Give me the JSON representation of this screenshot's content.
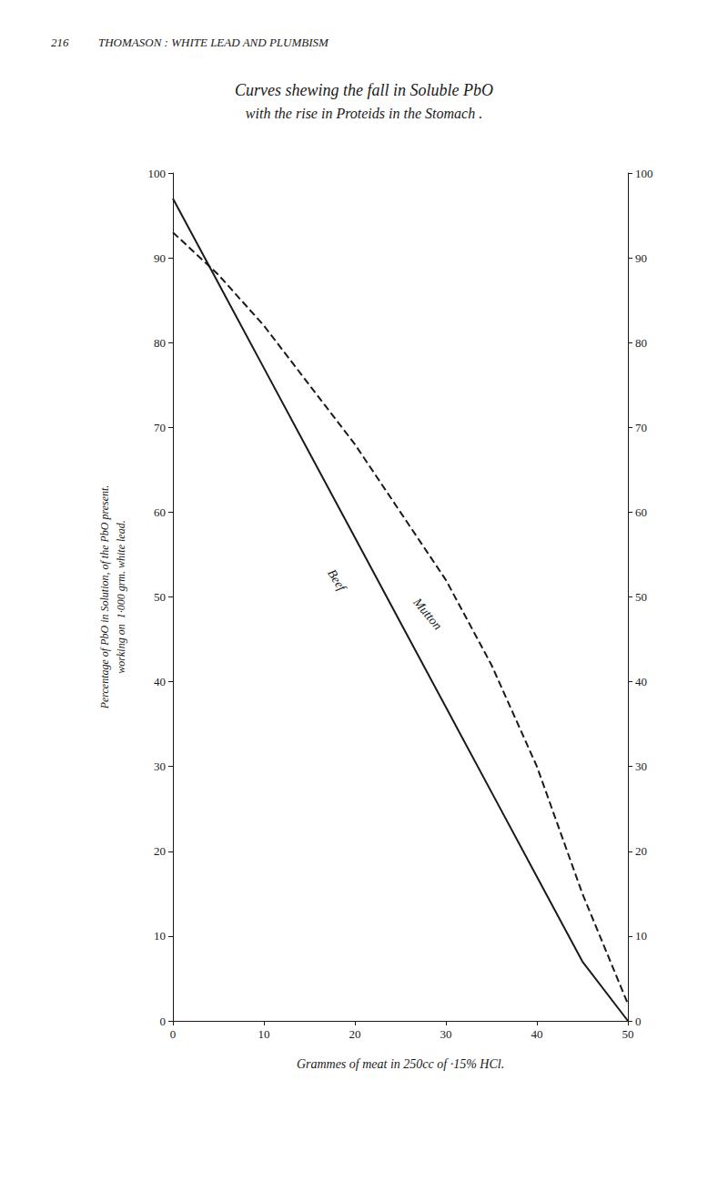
{
  "chart_data": {
    "type": "line",
    "header": "216          THOMASON : WHITE LEAD AND PLUMBISM",
    "title": "Curves shewing the fall in Soluble PbO",
    "subtitle": "with the rise in Proteids in the Stomach .",
    "xlabel": "Grammes of meat in 250cc of ·15% HCl.",
    "ylabel": "Percentage of PbO in Solution, of the PbO present.\nworking on  1·000 grm. white lead.",
    "xlim": [
      0,
      50
    ],
    "xticks": [
      0,
      10,
      20,
      30,
      40,
      50
    ],
    "ylim": [
      0,
      100
    ],
    "yticks": [
      0,
      10,
      20,
      30,
      40,
      50,
      60,
      70,
      80,
      90,
      100
    ],
    "y2lim": [
      0,
      100
    ],
    "y2ticks": [
      0,
      10,
      20,
      30,
      40,
      50,
      60,
      70,
      80,
      90,
      100
    ],
    "grid": false,
    "series": [
      {
        "name": "Beef",
        "color": "#1a1a1a",
        "line_style": "solid",
        "x": [
          0,
          5,
          10,
          15,
          20,
          25,
          30,
          35,
          40,
          45,
          50
        ],
        "values": [
          97,
          87,
          77,
          67,
          57,
          47,
          37,
          27,
          17,
          7,
          0
        ]
      },
      {
        "name": "Mutton",
        "color": "#1a1a1a",
        "line_style": "dashed",
        "x": [
          0,
          5,
          10,
          15,
          20,
          25,
          30,
          35,
          40,
          45,
          50
        ],
        "values": [
          93,
          88,
          82,
          75,
          68,
          60,
          52,
          42,
          30,
          15,
          2
        ]
      }
    ],
    "annotations": [
      {
        "text": "Beef",
        "x": 18,
        "y": 52
      },
      {
        "text": "Mutton",
        "x": 28,
        "y": 48
      }
    ]
  }
}
